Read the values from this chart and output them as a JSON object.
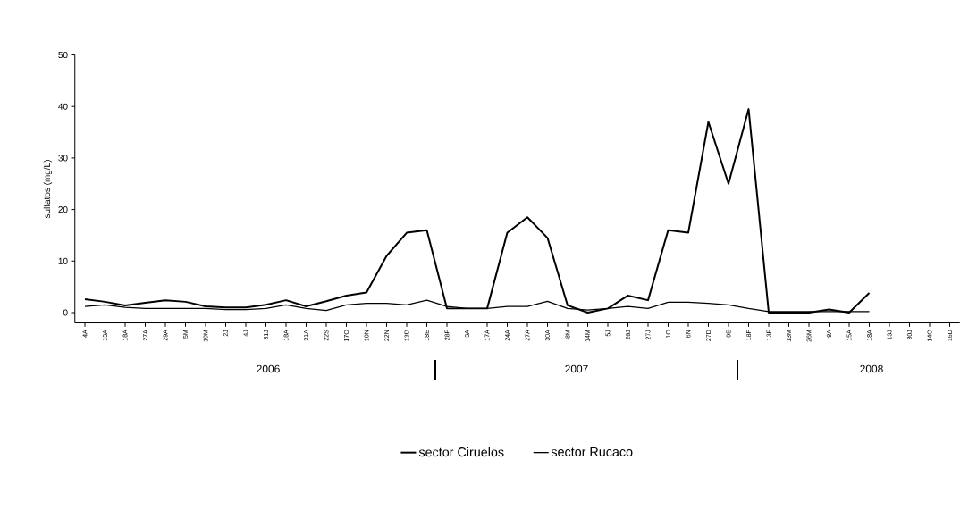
{
  "chart_data": {
    "type": "line",
    "ylabel": "sulfatos (mg/L)",
    "categories": [
      "4A",
      "13A",
      "18A",
      "27A",
      "29A",
      "5M",
      "19M",
      "2J",
      "4J",
      "31J",
      "18A",
      "31A",
      "22S",
      "17O",
      "10N",
      "22N",
      "13D",
      "18E",
      "28F",
      "3A",
      "17A",
      "24A",
      "27A",
      "30A",
      "8M",
      "14M",
      "5J",
      "26J",
      "27J",
      "1O",
      "6N",
      "27D",
      "9E",
      "18F",
      "13F",
      "13M",
      "26M",
      "8A",
      "15A",
      "18A",
      "13J",
      "30J",
      "14O",
      "16D"
    ],
    "series": [
      {
        "name": "sector Ciruelos",
        "color": "#000000",
        "values": [
          2.6,
          2.1,
          1.4,
          1.9,
          2.4,
          2.1,
          1.2,
          1,
          1,
          1.5,
          2.4,
          1.2,
          2.2,
          3.3,
          3.9,
          11,
          15.5,
          16,
          0.8,
          0.8,
          0.8,
          15.5,
          18.5,
          14.5,
          1.4,
          0,
          0.8,
          3.3,
          2.4,
          16,
          15.5,
          37,
          25,
          39.5,
          0,
          0,
          0,
          0.6,
          0,
          3.8,
          null,
          null,
          null,
          null
        ]
      },
      {
        "name": "sector Rucaco",
        "color": "#000000",
        "values": [
          1.2,
          1.5,
          1,
          0.8,
          0.8,
          0.8,
          0.8,
          0.6,
          0.6,
          0.8,
          1.5,
          0.8,
          0.4,
          1.5,
          1.8,
          1.8,
          1.5,
          2.4,
          1.2,
          0.8,
          0.8,
          1.2,
          1.2,
          2.2,
          0.8,
          0.5,
          0.8,
          1.2,
          0.8,
          2,
          2,
          1.8,
          1.5,
          0.8,
          0.2,
          0.2,
          0.2,
          0.2,
          0.2,
          0.2,
          null,
          null,
          null,
          null
        ]
      }
    ],
    "ylim": [
      -2,
      50
    ],
    "yticks": [
      0,
      10,
      20,
      30,
      40,
      50
    ],
    "legend": "bottom",
    "grid": false,
    "marker": "none",
    "line_style": "solid",
    "annotations": [
      "2006",
      "2007",
      "2008"
    ]
  }
}
